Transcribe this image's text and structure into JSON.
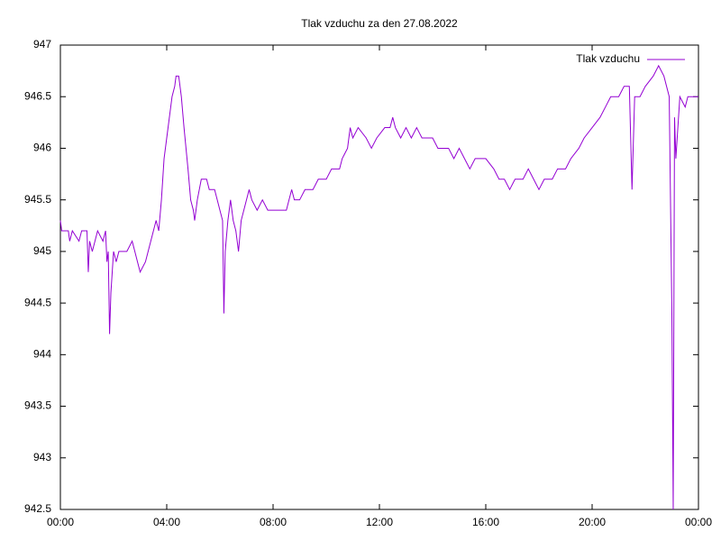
{
  "chart_data": {
    "type": "line",
    "title": "Tlak vzduchu za den 27.08.2022",
    "x": [
      0.0,
      0.05,
      0.3,
      0.35,
      0.45,
      0.7,
      0.8,
      1.0,
      1.05,
      1.1,
      1.2,
      1.3,
      1.4,
      1.6,
      1.7,
      1.75,
      1.8,
      1.85,
      1.9,
      2.0,
      2.1,
      2.2,
      2.5,
      2.7,
      2.8,
      2.9,
      3.0,
      3.2,
      3.3,
      3.5,
      3.6,
      3.7,
      3.8,
      3.9,
      4.0,
      4.1,
      4.2,
      4.3,
      4.35,
      4.45,
      4.55,
      4.65,
      4.8,
      4.9,
      5.0,
      5.05,
      5.15,
      5.3,
      5.5,
      5.6,
      5.8,
      5.9,
      6.0,
      6.1,
      6.15,
      6.2,
      6.3,
      6.4,
      6.5,
      6.6,
      6.7,
      6.8,
      6.9,
      7.0,
      7.1,
      7.2,
      7.4,
      7.6,
      7.8,
      8.5,
      8.6,
      8.7,
      8.8,
      9.0,
      9.2,
      9.5,
      9.7,
      10.0,
      10.2,
      10.5,
      10.6,
      10.8,
      10.9,
      11.0,
      11.2,
      11.5,
      11.7,
      11.9,
      12.2,
      12.4,
      12.5,
      12.6,
      12.8,
      13.0,
      13.2,
      13.4,
      13.6,
      14.0,
      14.2,
      14.6,
      14.8,
      15.0,
      15.2,
      15.4,
      15.6,
      16.0,
      16.3,
      16.5,
      16.7,
      16.9,
      17.1,
      17.4,
      17.6,
      17.8,
      18.0,
      18.2,
      18.5,
      18.7,
      19.0,
      19.2,
      19.5,
      19.7,
      20.0,
      20.3,
      20.5,
      20.7,
      21.0,
      21.2,
      21.4,
      21.5,
      21.6,
      21.8,
      22.0,
      22.3,
      22.5,
      22.7,
      22.9,
      23.0,
      23.05,
      23.1,
      23.15,
      23.3,
      23.5,
      23.6,
      24.0
    ],
    "series": [
      {
        "name": "Tlak vzduchu",
        "color": "#9400d3",
        "values": [
          945.3,
          945.2,
          945.2,
          945.1,
          945.2,
          945.1,
          945.2,
          945.2,
          944.8,
          945.1,
          945.0,
          945.1,
          945.2,
          945.1,
          945.2,
          944.9,
          945.0,
          944.2,
          944.6,
          945.0,
          944.9,
          945.0,
          945.0,
          945.1,
          945.0,
          944.9,
          944.8,
          944.9,
          945.0,
          945.2,
          945.3,
          945.2,
          945.5,
          945.9,
          946.1,
          946.3,
          946.5,
          946.6,
          946.7,
          946.7,
          946.5,
          946.2,
          945.8,
          945.5,
          945.4,
          945.3,
          945.5,
          945.7,
          945.7,
          945.6,
          945.6,
          945.5,
          945.4,
          945.3,
          944.4,
          945.0,
          945.3,
          945.5,
          945.3,
          945.2,
          945.0,
          945.3,
          945.4,
          945.5,
          945.6,
          945.5,
          945.4,
          945.5,
          945.4,
          945.4,
          945.5,
          945.6,
          945.5,
          945.5,
          945.6,
          945.6,
          945.7,
          945.7,
          945.8,
          945.8,
          945.9,
          946.0,
          946.2,
          946.1,
          946.2,
          946.1,
          946.0,
          946.1,
          946.2,
          946.2,
          946.3,
          946.2,
          946.1,
          946.2,
          946.1,
          946.2,
          946.1,
          946.1,
          946.0,
          946.0,
          945.9,
          946.0,
          945.9,
          945.8,
          945.9,
          945.9,
          945.8,
          945.7,
          945.7,
          945.6,
          945.7,
          945.7,
          945.8,
          945.7,
          945.6,
          945.7,
          945.7,
          945.8,
          945.8,
          945.9,
          946.0,
          946.1,
          946.2,
          946.3,
          946.4,
          946.5,
          946.5,
          946.6,
          946.6,
          945.6,
          946.5,
          946.5,
          946.6,
          946.7,
          946.8,
          946.7,
          946.5,
          944.4,
          942.5,
          946.3,
          945.9,
          946.5,
          946.4,
          946.5,
          946.5
        ]
      }
    ],
    "xlim": [
      0,
      24
    ],
    "xticks": [
      {
        "value": 0,
        "label": "00:00"
      },
      {
        "value": 4,
        "label": "04:00"
      },
      {
        "value": 8,
        "label": "08:00"
      },
      {
        "value": 12,
        "label": "12:00"
      },
      {
        "value": 16,
        "label": "16:00"
      },
      {
        "value": 20,
        "label": "20:00"
      },
      {
        "value": 24,
        "label": "00:00"
      }
    ],
    "ylim": [
      942.5,
      947
    ],
    "yticks": [
      942.5,
      943,
      943.5,
      944,
      944.5,
      945,
      945.5,
      946,
      946.5,
      947
    ],
    "grid": false,
    "legend": "top-right"
  }
}
